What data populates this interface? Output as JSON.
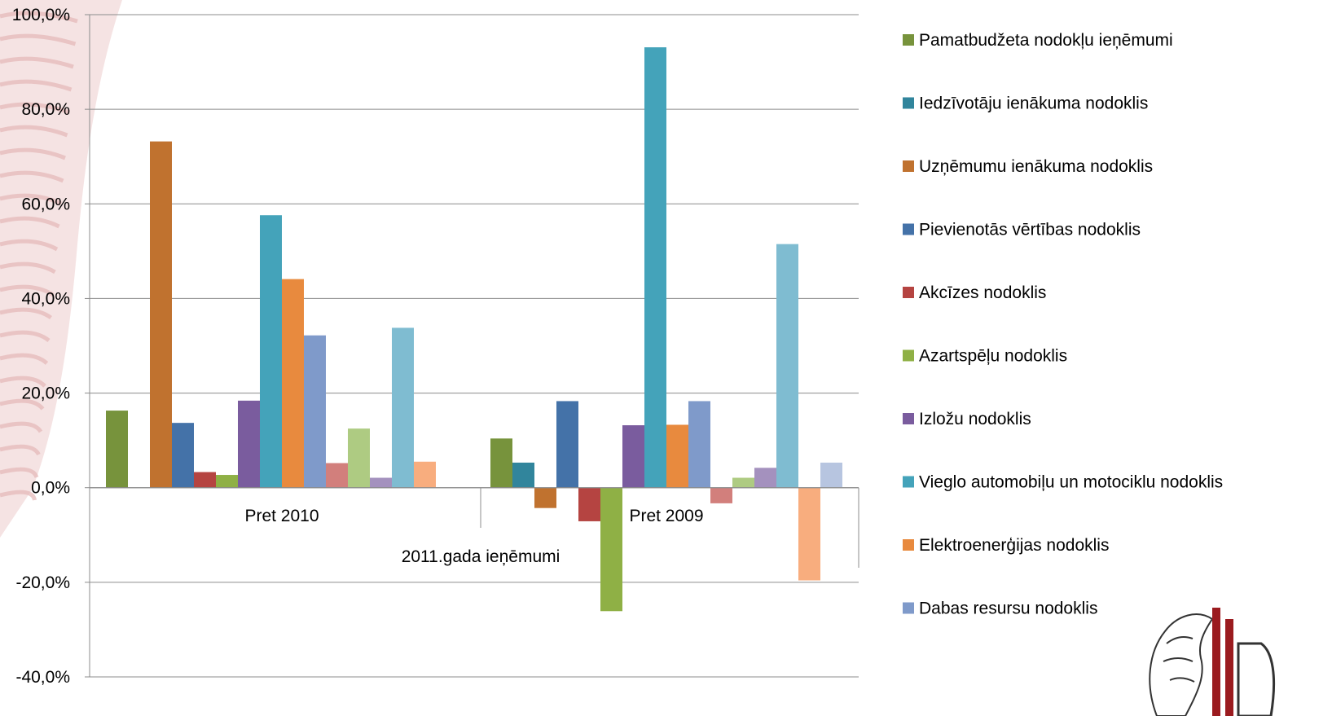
{
  "chart_data": {
    "type": "bar",
    "xlabel": "2011.gada ieņēmumi",
    "ylabel": "",
    "ylim": [
      -40,
      100
    ],
    "yticks": [
      "-40,0%",
      "-20,0%",
      "0,0%",
      "20,0%",
      "40,0%",
      "60,0%",
      "80,0%",
      "100,0%"
    ],
    "categories": [
      "Pret 2010",
      "Pret 2009"
    ],
    "grid": true,
    "legend_position": "right",
    "series": [
      {
        "name": "Pamatbudžeta nodokļu ieņēmumi",
        "color": "#77933C",
        "values": [
          16.3,
          10.4
        ]
      },
      {
        "name": "Iedzīvotāju ienākuma nodoklis",
        "color": "#31859C",
        "values": [
          null,
          5.3
        ]
      },
      {
        "name": "Uzņēmumu ienākuma nodoklis",
        "color": "#C0722F",
        "values": [
          73.2,
          -4.3
        ]
      },
      {
        "name": "Pievienotās vērtības nodoklis",
        "color": "#4472A8",
        "values": [
          13.7,
          18.3
        ]
      },
      {
        "name": "Akcīzes nodoklis",
        "color": "#B54441",
        "values": [
          3.3,
          -7.1
        ]
      },
      {
        "name": "Azartspēļu nodoklis",
        "color": "#8FB045",
        "values": [
          2.7,
          -26.1
        ]
      },
      {
        "name": "Izložu nodoklis",
        "color": "#7A5C9E",
        "values": [
          18.4,
          13.2
        ]
      },
      {
        "name": "Vieglo automobiļu un motociklu nodoklis",
        "color": "#44A3BA",
        "values": [
          57.6,
          93.1
        ]
      },
      {
        "name": "Elektroenerģijas nodoklis",
        "color": "#E88A3E",
        "values": [
          44.1,
          13.3
        ]
      },
      {
        "name": "Dabas resursu nodoklis",
        "color": "#7F9ACA",
        "values": [
          32.2,
          18.3
        ]
      },
      {
        "name": "",
        "color": "#D27F7C",
        "values": [
          5.2,
          -3.3
        ]
      },
      {
        "name": "",
        "color": "#AECB82",
        "values": [
          12.5,
          2.1
        ]
      },
      {
        "name": "",
        "color": "#A491BE",
        "values": [
          2.1,
          4.2
        ]
      },
      {
        "name": "",
        "color": "#7FBCD1",
        "values": [
          33.8,
          51.5
        ]
      },
      {
        "name": "",
        "color": "#F8AD7E",
        "values": [
          5.5,
          -19.6
        ]
      },
      {
        "name": "",
        "color": "#B7C5E0",
        "values": [
          null,
          5.3
        ]
      }
    ]
  }
}
